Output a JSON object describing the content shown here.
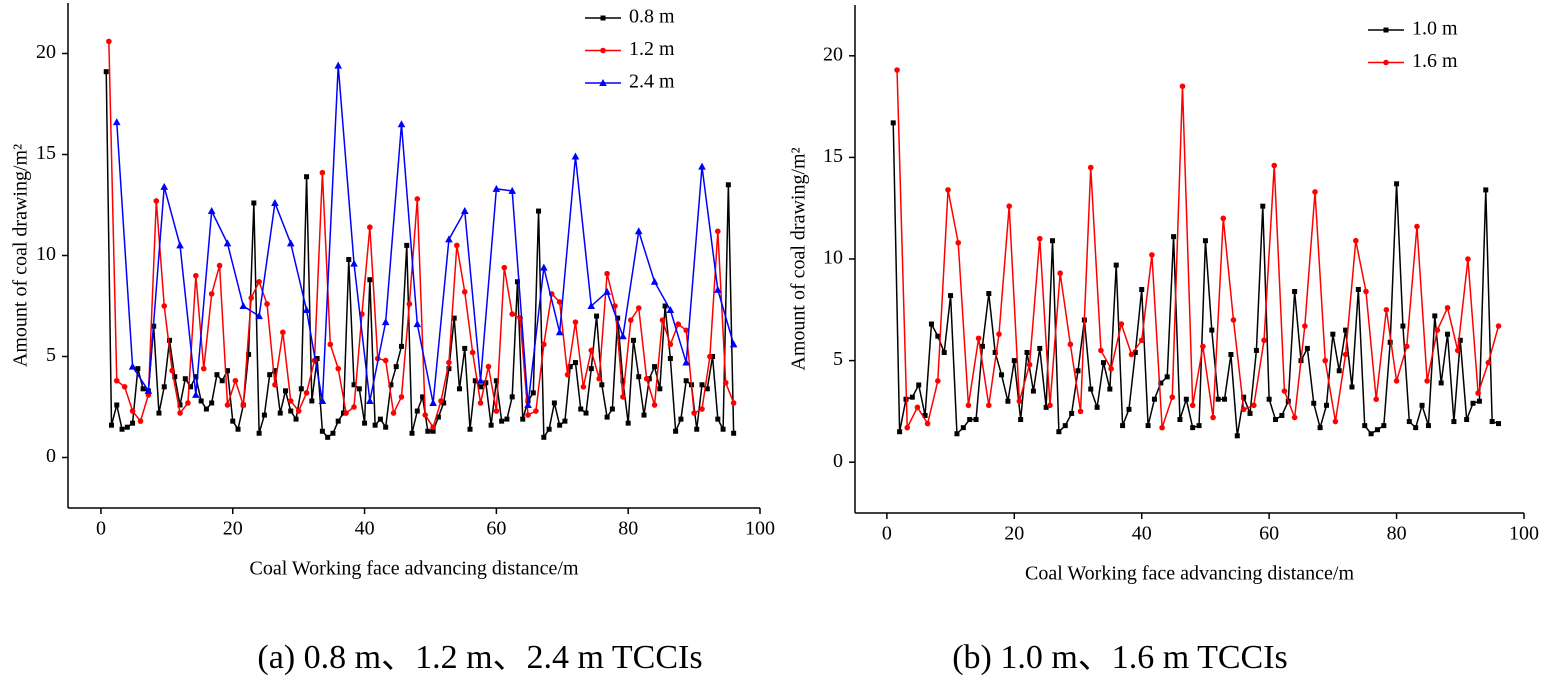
{
  "chart_data": [
    {
      "type": "line",
      "xlabel": "Coal Working face advancing distance/m",
      "ylabel": "Amount of coal drawing/m²",
      "caption": "(a) 0.8 m、1.2 m、2.4 m TCCIs",
      "xlim": [
        -5,
        100
      ],
      "ylim": [
        -2.5,
        22.5
      ],
      "xticks": [
        0,
        20,
        40,
        60,
        80,
        100
      ],
      "yticks": [
        0,
        5,
        10,
        15,
        20
      ],
      "legend": "upper right",
      "series": [
        {
          "name": "0.8 m",
          "color": "#000000",
          "marker": "square",
          "x": [
            0.8,
            1.6,
            2.4,
            3.2,
            4,
            4.8,
            5.6,
            6.4,
            7.2,
            8,
            8.8,
            9.6,
            10.4,
            11.2,
            12,
            12.8,
            13.6,
            14.4,
            15.2,
            16,
            16.8,
            17.6,
            18.4,
            19.2,
            20,
            20.8,
            21.6,
            22.4,
            23.2,
            24,
            24.8,
            25.6,
            26.4,
            27.2,
            28,
            28.8,
            29.6,
            30.4,
            31.2,
            32,
            32.8,
            33.6,
            34.4,
            35.2,
            36,
            36.8,
            37.6,
            38.4,
            39.2,
            40,
            40.8,
            41.6,
            42.4,
            43.2,
            44,
            44.8,
            45.6,
            46.4,
            47.2,
            48,
            48.8,
            49.6,
            50.4,
            51.2,
            52,
            52.8,
            53.6,
            54.4,
            55.2,
            56,
            56.8,
            57.6,
            58.4,
            59.2,
            60,
            60.8,
            61.6,
            62.4,
            63.2,
            64,
            64.8,
            65.6,
            66.4,
            67.2,
            68,
            68.8,
            69.6,
            70.4,
            71.2,
            72,
            72.8,
            73.6,
            74.4,
            75.2,
            76,
            76.8,
            77.6,
            78.4,
            79.2,
            80,
            80.8,
            81.6,
            82.4,
            83.2,
            84,
            84.8,
            85.6,
            86.4,
            87.2,
            88,
            88.8,
            89.6,
            90.4,
            91.2,
            92,
            92.8,
            93.6,
            94.4,
            95.2,
            96
          ],
          "values": [
            19.1,
            1.6,
            2.6,
            1.4,
            1.5,
            1.7,
            4.4,
            3.4,
            3.3,
            6.5,
            2.2,
            3.5,
            5.8,
            4.0,
            2.6,
            3.9,
            3.5,
            4.0,
            2.8,
            2.4,
            2.7,
            4.1,
            3.8,
            4.3,
            1.8,
            1.4,
            2.6,
            5.1,
            12.6,
            1.2,
            2.1,
            4.1,
            4.3,
            2.2,
            3.3,
            2.3,
            1.9,
            3.4,
            13.9,
            2.8,
            4.9,
            1.3,
            1.0,
            1.2,
            1.8,
            2.2,
            9.8,
            3.6,
            3.4,
            1.7,
            8.8,
            1.6,
            1.9,
            1.5,
            3.6,
            4.5,
            5.5,
            10.5,
            1.2,
            2.3,
            3.0,
            1.3,
            1.3,
            2.0,
            2.7,
            4.4,
            6.9,
            3.4,
            5.4,
            1.4,
            3.8,
            3.5,
            3.7,
            1.6,
            3.8,
            1.8,
            1.9,
            3.0,
            8.7,
            1.9,
            2.8,
            3.2,
            12.2,
            1.0,
            1.4,
            2.7,
            1.6,
            1.8,
            4.5,
            4.7,
            2.4,
            2.2,
            4.4,
            7.0,
            3.6,
            2.0,
            2.4,
            6.9,
            3.8,
            1.7,
            5.8,
            4.0,
            2.1,
            3.9,
            4.5,
            3.4,
            7.5,
            4.9,
            1.3,
            1.9,
            3.8,
            3.6,
            1.4,
            3.6,
            3.4,
            5.0,
            1.9,
            1.4,
            13.5,
            1.2
          ]
        },
        {
          "name": "1.2 m",
          "color": "#ff0000",
          "marker": "circle",
          "x": [
            1.2,
            2.4,
            3.6,
            4.8,
            6,
            7.2,
            8.4,
            9.6,
            10.8,
            12,
            13.2,
            14.4,
            15.6,
            16.8,
            18,
            19.2,
            20.4,
            21.6,
            22.8,
            24,
            25.2,
            26.4,
            27.6,
            28.8,
            30,
            31.2,
            32.4,
            33.6,
            34.8,
            36,
            37.2,
            38.4,
            39.6,
            40.8,
            42,
            43.2,
            44.4,
            45.6,
            46.8,
            48,
            49.2,
            50.4,
            51.6,
            52.8,
            54,
            55.2,
            56.4,
            57.6,
            58.8,
            60,
            61.2,
            62.4,
            63.6,
            64.8,
            66,
            67.2,
            68.4,
            69.6,
            70.8,
            72,
            73.2,
            74.4,
            75.6,
            76.8,
            78,
            79.2,
            80.4,
            81.6,
            82.8,
            84,
            85.2,
            86.4,
            87.6,
            88.8,
            90,
            91.2,
            92.4,
            93.6,
            94.8,
            96
          ],
          "values": [
            20.6,
            3.8,
            3.5,
            2.3,
            1.8,
            3.1,
            12.7,
            7.5,
            4.3,
            2.2,
            2.7,
            9.0,
            4.4,
            8.1,
            9.5,
            2.6,
            3.8,
            2.6,
            7.9,
            8.7,
            7.6,
            3.6,
            6.2,
            2.8,
            2.3,
            3.2,
            4.8,
            14.1,
            5.6,
            4.4,
            2.2,
            2.5,
            7.1,
            11.4,
            4.9,
            4.8,
            2.2,
            3.0,
            7.6,
            12.8,
            2.1,
            1.5,
            2.8,
            4.7,
            10.5,
            8.2,
            5.2,
            2.7,
            4.5,
            2.3,
            9.4,
            7.1,
            6.9,
            2.1,
            2.3,
            5.6,
            8.1,
            7.7,
            4.1,
            6.7,
            3.5,
            5.3,
            3.9,
            9.1,
            7.5,
            3.0,
            6.8,
            7.4,
            3.9,
            2.6,
            6.8,
            5.6,
            6.6,
            6.3,
            2.2,
            2.4,
            5.0,
            11.2,
            3.7,
            2.7
          ]
        },
        {
          "name": "2.4 m",
          "color": "#0000ff",
          "marker": "triangle",
          "x": [
            2.4,
            4.8,
            7.2,
            9.6,
            12,
            14.4,
            16.8,
            19.2,
            21.6,
            24,
            26.4,
            28.8,
            31.2,
            33.6,
            36,
            38.4,
            40.8,
            43.2,
            45.6,
            48,
            50.4,
            52.8,
            55.2,
            57.6,
            60,
            62.4,
            64.8,
            67.2,
            69.6,
            72,
            74.4,
            76.8,
            79.2,
            81.6,
            84,
            86.4,
            88.8,
            91.2,
            93.6,
            96
          ],
          "values": [
            16.6,
            4.5,
            3.3,
            13.4,
            10.5,
            3.1,
            12.2,
            10.6,
            7.5,
            7.0,
            12.6,
            10.6,
            7.3,
            2.8,
            19.4,
            9.6,
            2.8,
            6.7,
            16.5,
            6.6,
            2.7,
            10.8,
            12.2,
            3.8,
            13.3,
            13.2,
            2.6,
            9.4,
            6.2,
            14.9,
            7.5,
            8.2,
            6.0,
            11.2,
            8.7,
            7.3,
            4.7,
            14.4,
            8.3,
            5.6
          ]
        }
      ]
    },
    {
      "type": "line",
      "xlabel": "Coal Working face advancing distance/m",
      "ylabel": "Amount of coal drawing/m²",
      "caption": "(b) 1.0 m、1.6 m TCCIs",
      "xlim": [
        -5,
        100
      ],
      "ylim": [
        -2.5,
        22.5
      ],
      "xticks": [
        0,
        20,
        40,
        60,
        80,
        100
      ],
      "yticks": [
        0,
        5,
        10,
        15,
        20
      ],
      "legend": "upper right",
      "series": [
        {
          "name": "1.0 m",
          "color": "#000000",
          "marker": "square",
          "x": [
            1,
            2,
            3,
            4,
            5,
            6,
            7,
            8,
            9,
            10,
            11,
            12,
            13,
            14,
            15,
            16,
            17,
            18,
            19,
            20,
            21,
            22,
            23,
            24,
            25,
            26,
            27,
            28,
            29,
            30,
            31,
            32,
            33,
            34,
            35,
            36,
            37,
            38,
            39,
            40,
            41,
            42,
            43,
            44,
            45,
            46,
            47,
            48,
            49,
            50,
            51,
            52,
            53,
            54,
            55,
            56,
            57,
            58,
            59,
            60,
            61,
            62,
            63,
            64,
            65,
            66,
            67,
            68,
            69,
            70,
            71,
            72,
            73,
            74,
            75,
            76,
            77,
            78,
            79,
            80,
            81,
            82,
            83,
            84,
            85,
            86,
            87,
            88,
            89,
            90,
            91,
            92,
            93,
            94,
            95,
            96
          ],
          "values": [
            16.7,
            1.5,
            3.1,
            3.2,
            3.8,
            2.3,
            6.8,
            6.2,
            5.4,
            8.2,
            1.4,
            1.7,
            2.1,
            2.1,
            5.7,
            8.3,
            5.4,
            4.3,
            3.0,
            5.0,
            2.1,
            5.4,
            3.5,
            5.6,
            2.7,
            10.9,
            1.5,
            1.8,
            2.4,
            4.5,
            7.0,
            3.6,
            2.7,
            4.9,
            3.6,
            9.7,
            1.8,
            2.6,
            5.4,
            8.5,
            1.8,
            3.1,
            3.9,
            4.2,
            11.1,
            2.1,
            3.1,
            1.7,
            1.8,
            10.9,
            6.5,
            3.1,
            3.1,
            5.3,
            1.3,
            3.2,
            2.4,
            5.5,
            12.6,
            3.1,
            2.1,
            2.3,
            3.0,
            8.4,
            5.0,
            5.6,
            2.9,
            1.7,
            2.8,
            6.3,
            4.5,
            6.5,
            3.7,
            8.5,
            1.8,
            1.4,
            1.6,
            1.8,
            5.9,
            13.7,
            6.7,
            2.0,
            1.7,
            2.8,
            1.8,
            7.2,
            3.9,
            6.3,
            2.0,
            6.0,
            2.1,
            2.9,
            3.0,
            13.4,
            2.0,
            1.9
          ]
        },
        {
          "name": "1.6 m",
          "color": "#ff0000",
          "marker": "circle",
          "x": [
            1.6,
            3.2,
            4.8,
            6.4,
            8,
            9.6,
            11.2,
            12.8,
            14.4,
            16,
            17.6,
            19.2,
            20.8,
            22.4,
            24,
            25.6,
            27.2,
            28.8,
            30.4,
            32,
            33.6,
            35.2,
            36.8,
            38.4,
            40,
            41.6,
            43.2,
            44.8,
            46.4,
            48,
            49.6,
            51.2,
            52.8,
            54.4,
            56,
            57.6,
            59.2,
            60.8,
            62.4,
            64,
            65.6,
            67.2,
            68.8,
            70.4,
            72,
            73.6,
            75.2,
            76.8,
            78.4,
            80,
            81.6,
            83.2,
            84.8,
            86.4,
            88,
            89.6,
            91.2,
            92.8,
            94.4,
            96
          ],
          "values": [
            19.3,
            1.7,
            2.7,
            1.9,
            4.0,
            13.4,
            10.8,
            2.8,
            6.1,
            2.8,
            6.3,
            12.6,
            3.0,
            4.8,
            11.0,
            2.8,
            9.3,
            5.8,
            2.5,
            14.5,
            5.5,
            4.6,
            6.8,
            5.3,
            6.0,
            10.2,
            1.7,
            3.2,
            18.5,
            2.8,
            5.7,
            2.2,
            12.0,
            7.0,
            2.6,
            2.8,
            6.0,
            14.6,
            3.5,
            2.2,
            6.7,
            13.3,
            5.0,
            2.0,
            5.3,
            10.9,
            8.4,
            3.1,
            7.5,
            4.0,
            5.7,
            11.6,
            4.0,
            6.5,
            7.6,
            5.5,
            10.0,
            3.4,
            4.9,
            6.7
          ]
        }
      ]
    }
  ]
}
